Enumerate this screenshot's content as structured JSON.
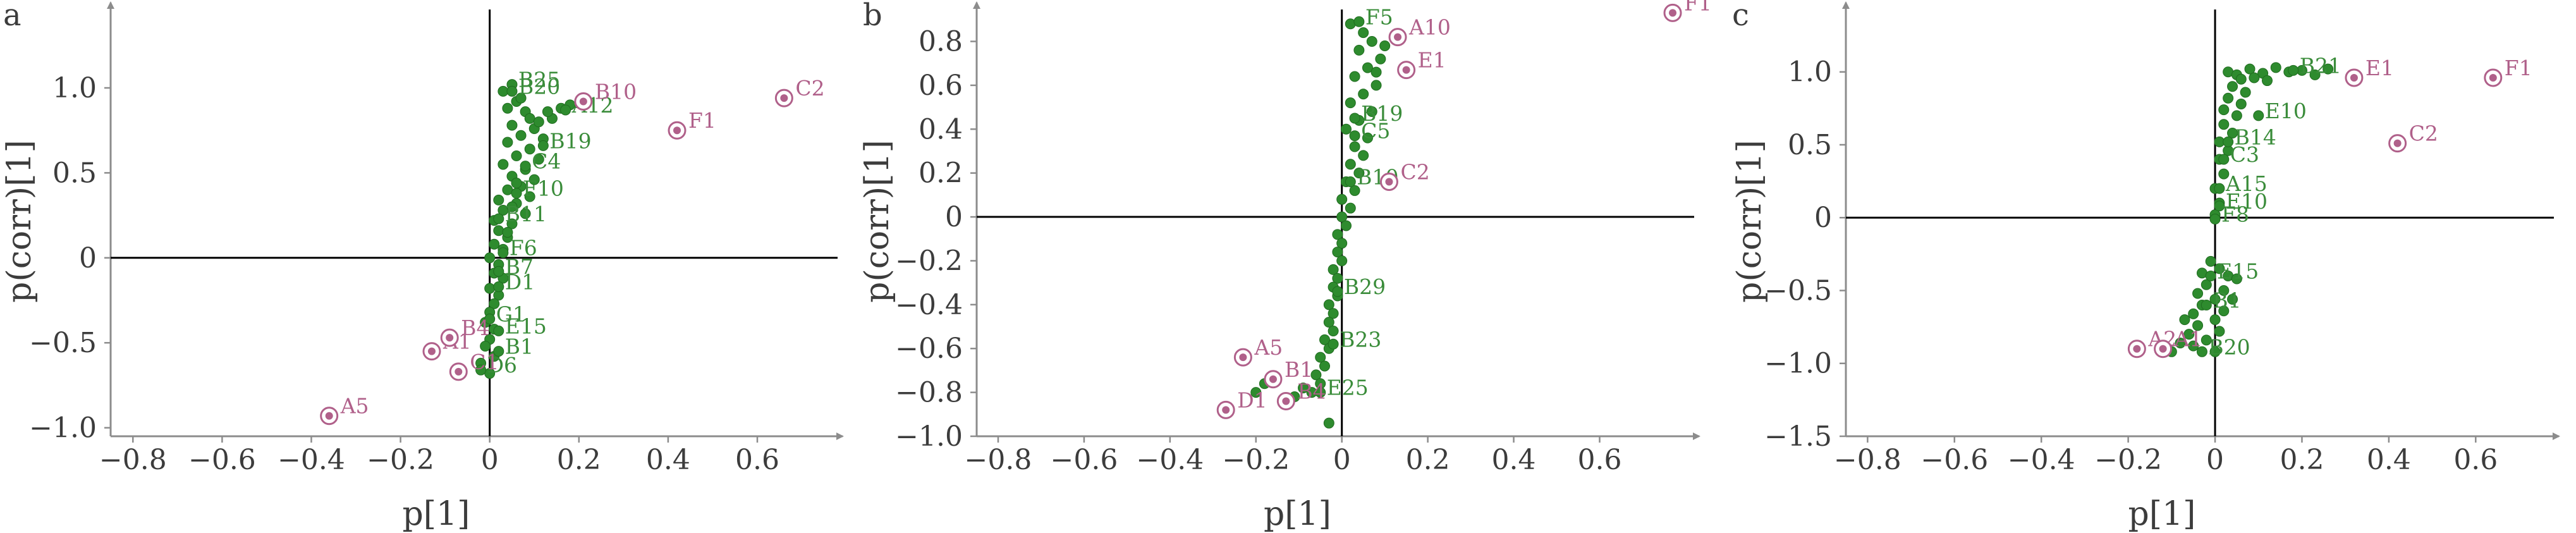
{
  "colors": {
    "green": "#2e8b2e",
    "green_text": "#3a8c3a",
    "pink": "#b0608a",
    "axis": "#8c8c8c",
    "text": "#3c3c3c"
  },
  "chart_data": [
    {
      "type": "scatter",
      "panel": "a",
      "xlabel": "p[1]",
      "ylabel": "p(corr)[1]",
      "xlim": [
        -0.85,
        0.78
      ],
      "ylim": [
        -1.05,
        1.48
      ],
      "xticks": [
        -0.8,
        -0.6,
        -0.4,
        -0.2,
        0,
        0.2,
        0.4,
        0.6
      ],
      "yticks": [
        -1.0,
        -0.5,
        0,
        0.5,
        1.0
      ],
      "xtick_labels": [
        "−0.8",
        "−0.6",
        "−0.4",
        "−0.2",
        "0",
        "0.2",
        "0.4",
        "0.6"
      ],
      "ytick_labels": [
        "−1.0",
        "−0.5",
        "0",
        "0.5",
        "1.0"
      ],
      "grid": false,
      "highlighted": [
        {
          "label": "C2",
          "x": 0.66,
          "y": 0.94
        },
        {
          "label": "F1",
          "x": 0.42,
          "y": 0.75
        },
        {
          "label": "B10",
          "x": 0.21,
          "y": 0.92
        },
        {
          "label": "A5",
          "x": -0.36,
          "y": -0.93
        },
        {
          "label": "A1",
          "x": -0.13,
          "y": -0.55
        },
        {
          "label": "B4",
          "x": -0.09,
          "y": -0.47
        },
        {
          "label": "C1",
          "x": -0.07,
          "y": -0.67
        }
      ],
      "labeled_points": [
        {
          "label": "B25",
          "x": 0.05,
          "y": 1.02
        },
        {
          "label": "B20",
          "x": 0.05,
          "y": 0.98
        },
        {
          "label": "A12",
          "x": 0.17,
          "y": 0.87
        },
        {
          "label": "B19",
          "x": 0.12,
          "y": 0.66
        },
        {
          "label": "C4",
          "x": 0.08,
          "y": 0.54
        },
        {
          "label": "F10",
          "x": 0.06,
          "y": 0.38
        },
        {
          "label": "B11",
          "x": 0.02,
          "y": 0.23
        },
        {
          "label": "F6",
          "x": 0.03,
          "y": 0.03
        },
        {
          "label": "B7",
          "x": 0.02,
          "y": -0.08
        },
        {
          "label": "D1",
          "x": 0.02,
          "y": -0.17
        },
        {
          "label": "G1",
          "x": 0.0,
          "y": -0.36
        },
        {
          "label": "E15",
          "x": 0.02,
          "y": -0.43
        },
        {
          "label": "B1",
          "x": 0.02,
          "y": -0.55
        },
        {
          "label": "D6",
          "x": -0.02,
          "y": -0.66
        }
      ],
      "points": [
        [
          0.03,
          0.98
        ],
        [
          0.06,
          0.92
        ],
        [
          0.04,
          0.88
        ],
        [
          0.08,
          0.86
        ],
        [
          0.09,
          0.82
        ],
        [
          0.05,
          0.78
        ],
        [
          0.1,
          0.76
        ],
        [
          0.07,
          0.72
        ],
        [
          0.12,
          0.7
        ],
        [
          0.04,
          0.68
        ],
        [
          0.09,
          0.64
        ],
        [
          0.06,
          0.6
        ],
        [
          0.11,
          0.58
        ],
        [
          0.03,
          0.55
        ],
        [
          0.08,
          0.52
        ],
        [
          0.05,
          0.48
        ],
        [
          0.1,
          0.46
        ],
        [
          0.07,
          0.42
        ],
        [
          0.04,
          0.4
        ],
        [
          0.09,
          0.36
        ],
        [
          0.02,
          0.34
        ],
        [
          0.06,
          0.32
        ],
        [
          0.03,
          0.28
        ],
        [
          0.08,
          0.26
        ],
        [
          0.01,
          0.22
        ],
        [
          0.05,
          0.2
        ],
        [
          0.02,
          0.16
        ],
        [
          0.04,
          0.12
        ],
        [
          0.01,
          0.08
        ],
        [
          0.03,
          0.05
        ],
        [
          0.0,
          0.0
        ],
        [
          0.02,
          -0.04
        ],
        [
          0.01,
          -0.09
        ],
        [
          0.03,
          -0.12
        ],
        [
          0.0,
          -0.18
        ],
        [
          0.02,
          -0.22
        ],
        [
          0.01,
          -0.27
        ],
        [
          0.0,
          -0.32
        ],
        [
          -0.01,
          -0.38
        ],
        [
          0.01,
          -0.42
        ],
        [
          0.0,
          -0.48
        ],
        [
          -0.01,
          -0.52
        ],
        [
          0.01,
          -0.58
        ],
        [
          -0.02,
          -0.62
        ],
        [
          0.0,
          -0.68
        ],
        [
          0.14,
          0.82
        ],
        [
          0.16,
          0.88
        ],
        [
          0.18,
          0.9
        ],
        [
          0.13,
          0.86
        ],
        [
          0.11,
          0.8
        ],
        [
          0.07,
          0.94
        ],
        [
          0.06,
          0.44
        ],
        [
          0.05,
          0.3
        ],
        [
          0.04,
          0.15
        ]
      ]
    },
    {
      "type": "scatter",
      "panel": "b",
      "xlabel": "p[1]",
      "ylabel": "p(corr)[1]",
      "xlim": [
        -0.85,
        0.82
      ],
      "ylim": [
        -1.0,
        0.96
      ],
      "xticks": [
        -0.8,
        -0.6,
        -0.4,
        -0.2,
        0,
        0.2,
        0.4,
        0.6
      ],
      "yticks": [
        -1.0,
        -0.8,
        -0.6,
        -0.4,
        -0.2,
        0,
        0.2,
        0.4,
        0.6,
        0.8
      ],
      "xtick_labels": [
        "−0.8",
        "−0.6",
        "−0.4",
        "−0.2",
        "0",
        "0.2",
        "0.4",
        "0.6"
      ],
      "ytick_labels": [
        "−1.0",
        "−0.8",
        "−0.6",
        "−0.4",
        "−0.2",
        "0",
        "0.2",
        "0.4",
        "0.6",
        "0.8"
      ],
      "grid": false,
      "highlighted": [
        {
          "label": "F1",
          "x": 0.77,
          "y": 0.93
        },
        {
          "label": "A10",
          "x": 0.13,
          "y": 0.82
        },
        {
          "label": "E1",
          "x": 0.15,
          "y": 0.67
        },
        {
          "label": "C2",
          "x": 0.11,
          "y": 0.16
        },
        {
          "label": "A5",
          "x": -0.23,
          "y": -0.64
        },
        {
          "label": "D1",
          "x": -0.27,
          "y": -0.88
        },
        {
          "label": "B1",
          "x": -0.16,
          "y": -0.74
        },
        {
          "label": "B4",
          "x": -0.13,
          "y": -0.84
        }
      ],
      "labeled_points": [
        {
          "label": "F5",
          "x": 0.04,
          "y": 0.89
        },
        {
          "label": "B19",
          "x": 0.03,
          "y": 0.45
        },
        {
          "label": "C5",
          "x": 0.03,
          "y": 0.37
        },
        {
          "label": "B10",
          "x": 0.02,
          "y": 0.16
        },
        {
          "label": "B29",
          "x": -0.01,
          "y": -0.34
        },
        {
          "label": "B23",
          "x": -0.02,
          "y": -0.58
        },
        {
          "label": "E25",
          "x": -0.05,
          "y": -0.8
        }
      ],
      "points": [
        [
          0.02,
          0.88
        ],
        [
          0.05,
          0.84
        ],
        [
          0.07,
          0.8
        ],
        [
          0.04,
          0.76
        ],
        [
          0.09,
          0.72
        ],
        [
          0.06,
          0.68
        ],
        [
          0.03,
          0.64
        ],
        [
          0.08,
          0.6
        ],
        [
          0.05,
          0.56
        ],
        [
          0.02,
          0.52
        ],
        [
          0.07,
          0.48
        ],
        [
          0.04,
          0.44
        ],
        [
          0.01,
          0.4
        ],
        [
          0.06,
          0.36
        ],
        [
          0.03,
          0.32
        ],
        [
          0.05,
          0.28
        ],
        [
          0.02,
          0.24
        ],
        [
          0.04,
          0.2
        ],
        [
          0.01,
          0.16
        ],
        [
          0.03,
          0.12
        ],
        [
          0.0,
          0.08
        ],
        [
          0.02,
          0.04
        ],
        [
          0.0,
          0.0
        ],
        [
          0.01,
          -0.04
        ],
        [
          -0.01,
          -0.08
        ],
        [
          0.0,
          -0.12
        ],
        [
          -0.01,
          -0.16
        ],
        [
          0.0,
          -0.2
        ],
        [
          -0.02,
          -0.24
        ],
        [
          -0.01,
          -0.28
        ],
        [
          -0.02,
          -0.32
        ],
        [
          -0.01,
          -0.36
        ],
        [
          -0.03,
          -0.4
        ],
        [
          -0.02,
          -0.44
        ],
        [
          -0.03,
          -0.48
        ],
        [
          -0.02,
          -0.52
        ],
        [
          -0.04,
          -0.56
        ],
        [
          -0.03,
          -0.6
        ],
        [
          -0.05,
          -0.64
        ],
        [
          -0.04,
          -0.68
        ],
        [
          -0.06,
          -0.72
        ],
        [
          -0.05,
          -0.76
        ],
        [
          -0.07,
          -0.8
        ],
        [
          -0.03,
          -0.94
        ],
        [
          -0.09,
          -0.78
        ],
        [
          -0.11,
          -0.82
        ],
        [
          -0.18,
          -0.76
        ],
        [
          -0.2,
          -0.8
        ],
        [
          0.1,
          0.78
        ],
        [
          0.08,
          0.66
        ]
      ]
    },
    {
      "type": "scatter",
      "panel": "c",
      "xlabel": "p[1]",
      "ylabel": "p(corr)[1]",
      "xlim": [
        -0.85,
        0.78
      ],
      "ylim": [
        -1.5,
        1.45
      ],
      "xticks": [
        -0.8,
        -0.6,
        -0.4,
        -0.2,
        0,
        0.2,
        0.4,
        0.6
      ],
      "yticks": [
        -1.5,
        -1.0,
        -0.5,
        0,
        0.5,
        1.0
      ],
      "xtick_labels": [
        "−0.8",
        "−0.6",
        "−0.4",
        "−0.2",
        "0",
        "0.2",
        "0.4",
        "0.6"
      ],
      "ytick_labels": [
        "−1.5",
        "−1.0",
        "−0.5",
        "0",
        "0.5",
        "1.0"
      ],
      "grid": false,
      "highlighted": [
        {
          "label": "F1",
          "x": 0.64,
          "y": 0.96
        },
        {
          "label": "E1",
          "x": 0.32,
          "y": 0.96
        },
        {
          "label": "C2",
          "x": 0.42,
          "y": 0.51
        },
        {
          "label": "A2",
          "x": -0.18,
          "y": -0.9
        },
        {
          "label": "A1",
          "x": -0.12,
          "y": -0.9
        }
      ],
      "labeled_points": [
        {
          "label": "B21",
          "x": 0.18,
          "y": 1.01
        },
        {
          "label": "E10",
          "x": 0.1,
          "y": 0.7
        },
        {
          "label": "B14",
          "x": 0.03,
          "y": 0.52
        },
        {
          "label": "C3",
          "x": 0.02,
          "y": 0.4
        },
        {
          "label": "A15",
          "x": 0.01,
          "y": 0.2
        },
        {
          "label": "E10",
          "x": 0.01,
          "y": 0.08
        },
        {
          "label": "F8",
          "x": 0.0,
          "y": -0.01
        },
        {
          "label": "E15",
          "x": -0.01,
          "y": -0.4
        },
        {
          "label": "B1",
          "x": -0.02,
          "y": -0.6
        },
        {
          "label": "B20",
          "x": -0.03,
          "y": -0.92
        }
      ],
      "points": [
        [
          0.03,
          1.0
        ],
        [
          0.05,
          0.98
        ],
        [
          0.08,
          1.02
        ],
        [
          0.11,
          0.99
        ],
        [
          0.14,
          1.03
        ],
        [
          0.17,
          1.0
        ],
        [
          0.2,
          1.01
        ],
        [
          0.23,
          0.98
        ],
        [
          0.26,
          1.02
        ],
        [
          0.06,
          0.95
        ],
        [
          0.09,
          0.96
        ],
        [
          0.12,
          0.94
        ],
        [
          0.04,
          0.9
        ],
        [
          0.07,
          0.86
        ],
        [
          0.03,
          0.82
        ],
        [
          0.06,
          0.78
        ],
        [
          0.02,
          0.74
        ],
        [
          0.05,
          0.7
        ],
        [
          0.02,
          0.64
        ],
        [
          0.04,
          0.58
        ],
        [
          0.01,
          0.52
        ],
        [
          0.03,
          0.46
        ],
        [
          0.01,
          0.4
        ],
        [
          0.02,
          0.3
        ],
        [
          0.0,
          0.2
        ],
        [
          0.01,
          0.1
        ],
        [
          0.0,
          0.02
        ],
        [
          -0.01,
          -0.3
        ],
        [
          0.01,
          -0.35
        ],
        [
          0.03,
          -0.4
        ],
        [
          -0.03,
          -0.38
        ],
        [
          0.05,
          -0.42
        ],
        [
          -0.02,
          -0.46
        ],
        [
          0.02,
          -0.5
        ],
        [
          -0.04,
          -0.52
        ],
        [
          0.0,
          -0.56
        ],
        [
          -0.03,
          -0.6
        ],
        [
          0.02,
          -0.64
        ],
        [
          -0.05,
          -0.66
        ],
        [
          0.0,
          -0.7
        ],
        [
          -0.04,
          -0.74
        ],
        [
          0.01,
          -0.78
        ],
        [
          -0.06,
          -0.8
        ],
        [
          -0.02,
          -0.84
        ],
        [
          -0.05,
          -0.88
        ],
        [
          0.0,
          -0.92
        ],
        [
          -0.08,
          -0.86
        ],
        [
          -0.1,
          -0.92
        ],
        [
          0.04,
          -0.56
        ],
        [
          -0.07,
          -0.7
        ]
      ]
    }
  ]
}
